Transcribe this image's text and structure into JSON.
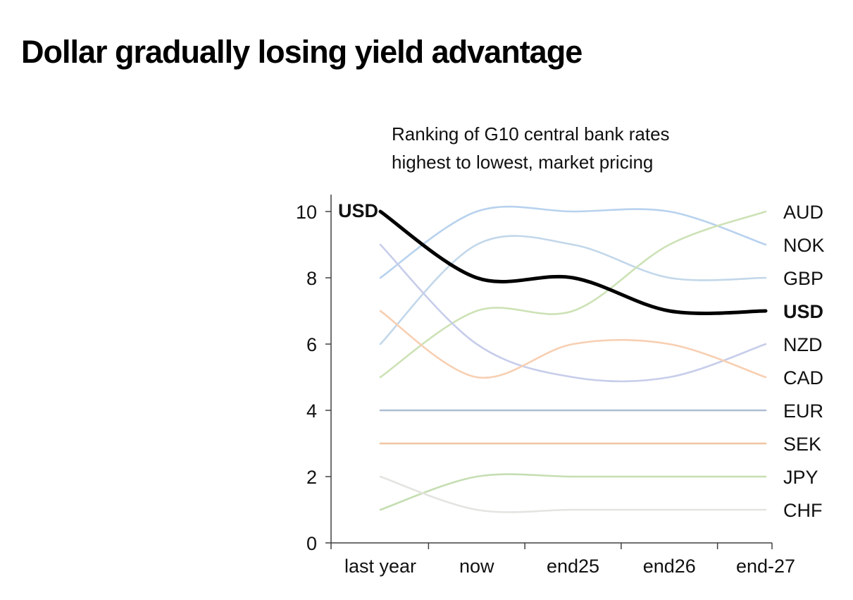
{
  "page": {
    "title": "Dollar gradually losing yield advantage",
    "subtitle_line1": "Ranking of G10 central bank rates",
    "subtitle_line2": "highest to lowest, market pricing"
  },
  "chart_data": {
    "type": "line",
    "title": "Dollar gradually losing yield advantage",
    "subtitle": "Ranking of G10 central bank rates highest to lowest, market pricing",
    "xlabel": "",
    "ylabel": "",
    "x_categories": [
      "last year",
      "now",
      "end25",
      "end26",
      "end-27"
    ],
    "y_ticks": [
      0,
      2,
      4,
      6,
      8,
      10
    ],
    "ylim": [
      0,
      10.5
    ],
    "grid": false,
    "legend_position": "right-edge-labels",
    "start_label": {
      "text": "USD",
      "bold": true
    },
    "series": [
      {
        "name": "USD",
        "values": [
          10,
          8,
          8,
          7,
          7
        ],
        "color": "#000000",
        "width": 5,
        "bold_label": true
      },
      {
        "name": "NOK",
        "values": [
          8,
          10,
          10,
          10,
          9
        ],
        "color": "#b7d2ee",
        "width": 2.6,
        "bold_label": false
      },
      {
        "name": "GBP",
        "values": [
          6,
          9,
          9,
          8,
          8
        ],
        "color": "#c2d7ea",
        "width": 2.6,
        "bold_label": false
      },
      {
        "name": "AUD",
        "values": [
          5,
          7,
          7,
          9,
          10
        ],
        "color": "#cde2b6",
        "width": 2.6,
        "bold_label": false
      },
      {
        "name": "NZD",
        "values": [
          9,
          6,
          5,
          5,
          6
        ],
        "color": "#c7cdea",
        "width": 2.6,
        "bold_label": false
      },
      {
        "name": "CAD",
        "values": [
          7,
          5,
          6,
          6,
          5
        ],
        "color": "#f7cfb2",
        "width": 2.6,
        "bold_label": false
      },
      {
        "name": "EUR",
        "values": [
          4,
          4,
          4,
          4,
          4
        ],
        "color": "#adbdd3",
        "width": 2.6,
        "bold_label": false
      },
      {
        "name": "SEK",
        "values": [
          3,
          3,
          3,
          3,
          3
        ],
        "color": "#f0c5a2",
        "width": 2.6,
        "bold_label": false
      },
      {
        "name": "JPY",
        "values": [
          1,
          2,
          2,
          2,
          2
        ],
        "color": "#c5deb2",
        "width": 2.6,
        "bold_label": false
      },
      {
        "name": "CHF",
        "values": [
          2,
          1,
          1,
          1,
          1
        ],
        "color": "#e4e4e1",
        "width": 2.6,
        "bold_label": false
      }
    ],
    "right_labels_order": [
      "AUD",
      "NOK",
      "GBP",
      "USD",
      "NZD",
      "CAD",
      "EUR",
      "SEK",
      "JPY",
      "CHF"
    ],
    "axis_color": "#404040"
  }
}
